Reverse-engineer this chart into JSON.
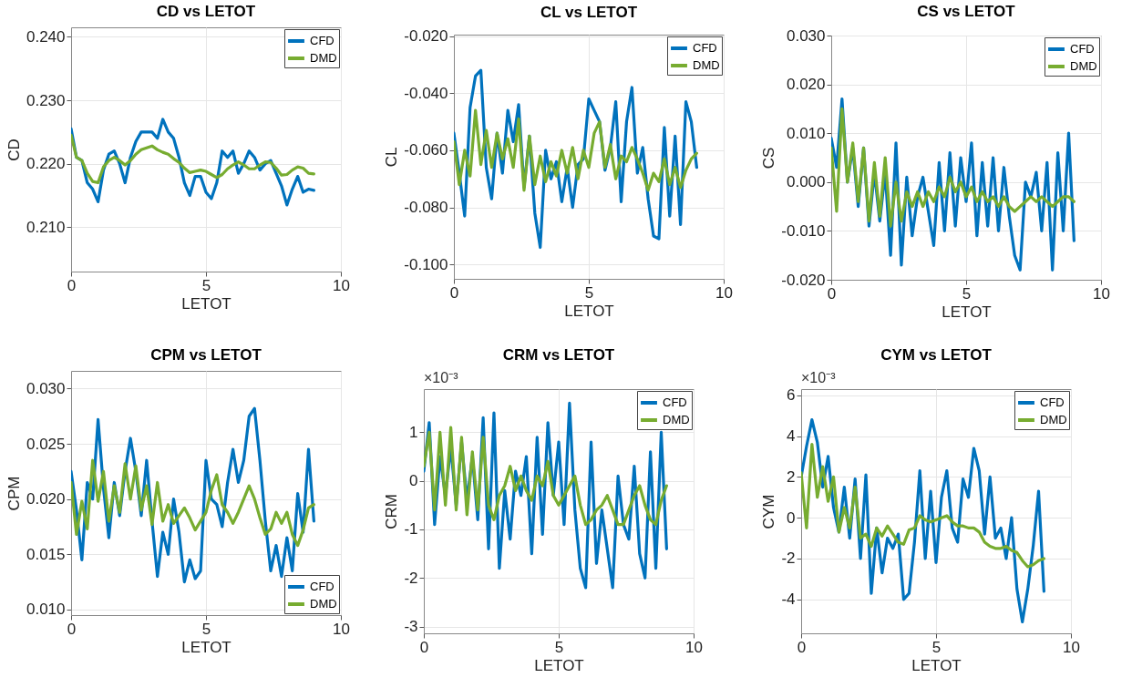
{
  "chart_data": [
    {
      "type": "line",
      "title": "CD vs LETOT",
      "xlabel": "LETOT",
      "ylabel": "CD",
      "x": [
        0,
        0.2,
        0.4,
        0.6,
        0.8,
        1.0,
        1.2,
        1.4,
        1.6,
        1.8,
        2.0,
        2.2,
        2.4,
        2.6,
        2.8,
        3.0,
        3.2,
        3.4,
        3.6,
        3.8,
        4.0,
        4.2,
        4.4,
        4.6,
        4.8,
        5.0,
        5.2,
        5.4,
        5.6,
        5.8,
        6.0,
        6.2,
        6.4,
        6.6,
        6.8,
        7.0,
        7.2,
        7.4,
        7.6,
        7.8,
        8.0,
        8.2,
        8.4,
        8.6,
        8.8,
        9.0
      ],
      "xlim": [
        0,
        10
      ],
      "xticks": [
        0,
        5,
        10
      ],
      "ylim": [
        0.203,
        0.2415
      ],
      "yticks": [
        {
          "value": 0.21,
          "label": "0.210"
        },
        {
          "value": 0.22,
          "label": "0.220"
        },
        {
          "value": 0.23,
          "label": "0.230"
        },
        {
          "value": 0.24,
          "label": "0.240"
        }
      ],
      "grid": true,
      "legend": "top right",
      "series": [
        {
          "name": "CFD",
          "color": "#0072bd",
          "values": [
            0.2255,
            0.221,
            0.2205,
            0.217,
            0.216,
            0.214,
            0.219,
            0.2215,
            0.222,
            0.22,
            0.217,
            0.221,
            0.2235,
            0.225,
            0.225,
            0.225,
            0.224,
            0.227,
            0.225,
            0.224,
            0.221,
            0.217,
            0.215,
            0.218,
            0.218,
            0.2155,
            0.2145,
            0.217,
            0.222,
            0.221,
            0.222,
            0.2185,
            0.22,
            0.222,
            0.221,
            0.219,
            0.22,
            0.2205,
            0.2185,
            0.2165,
            0.2135,
            0.216,
            0.218,
            0.2155,
            0.216,
            0.2158
          ]
        },
        {
          "name": "DMD",
          "color": "#77ac30",
          "values": [
            0.2245,
            0.221,
            0.2205,
            0.2185,
            0.2172,
            0.217,
            0.2195,
            0.2205,
            0.221,
            0.2205,
            0.2198,
            0.2205,
            0.2215,
            0.2222,
            0.2225,
            0.2228,
            0.2222,
            0.2218,
            0.2215,
            0.2208,
            0.2202,
            0.2193,
            0.2186,
            0.2188,
            0.219,
            0.2188,
            0.2183,
            0.2178,
            0.2183,
            0.2192,
            0.2198,
            0.2203,
            0.2198,
            0.2192,
            0.2192,
            0.2198,
            0.2203,
            0.2202,
            0.2193,
            0.2182,
            0.2183,
            0.219,
            0.2195,
            0.2193,
            0.2185,
            0.2184
          ]
        }
      ]
    },
    {
      "type": "line",
      "title": "CL vs LETOT",
      "xlabel": "LETOT",
      "ylabel": "CL",
      "x": [
        0,
        0.2,
        0.4,
        0.6,
        0.8,
        1.0,
        1.2,
        1.4,
        1.6,
        1.8,
        2.0,
        2.2,
        2.4,
        2.6,
        2.8,
        3.0,
        3.2,
        3.4,
        3.6,
        3.8,
        4.0,
        4.2,
        4.4,
        4.6,
        4.8,
        5.0,
        5.2,
        5.4,
        5.6,
        5.8,
        6.0,
        6.2,
        6.4,
        6.6,
        6.8,
        7.0,
        7.2,
        7.4,
        7.6,
        7.8,
        8.0,
        8.2,
        8.4,
        8.6,
        8.8,
        9.0
      ],
      "xlim": [
        0,
        10
      ],
      "xticks": [
        0,
        5,
        10
      ],
      "ylim": [
        -0.105,
        -0.0195
      ],
      "yticks": [
        {
          "value": -0.1,
          "label": "-0.100"
        },
        {
          "value": -0.08,
          "label": "-0.080"
        },
        {
          "value": -0.06,
          "label": "-0.060"
        },
        {
          "value": -0.04,
          "label": "-0.040"
        },
        {
          "value": -0.02,
          "label": "-0.020"
        }
      ],
      "grid": true,
      "legend": "top right",
      "series": [
        {
          "name": "CFD",
          "color": "#0072bd",
          "values": [
            -0.054,
            -0.068,
            -0.083,
            -0.045,
            -0.034,
            -0.032,
            -0.066,
            -0.077,
            -0.054,
            -0.068,
            -0.046,
            -0.057,
            -0.044,
            -0.073,
            -0.055,
            -0.082,
            -0.094,
            -0.06,
            -0.07,
            -0.064,
            -0.078,
            -0.066,
            -0.08,
            -0.065,
            -0.063,
            -0.042,
            -0.046,
            -0.05,
            -0.067,
            -0.059,
            -0.043,
            -0.078,
            -0.05,
            -0.038,
            -0.068,
            -0.059,
            -0.077,
            -0.09,
            -0.091,
            -0.052,
            -0.083,
            -0.055,
            -0.086,
            -0.043,
            -0.05,
            -0.066
          ]
        },
        {
          "name": "DMD",
          "color": "#77ac30",
          "values": [
            -0.057,
            -0.072,
            -0.06,
            -0.069,
            -0.046,
            -0.065,
            -0.053,
            -0.066,
            -0.054,
            -0.063,
            -0.056,
            -0.066,
            -0.049,
            -0.074,
            -0.055,
            -0.072,
            -0.062,
            -0.071,
            -0.064,
            -0.069,
            -0.06,
            -0.068,
            -0.059,
            -0.07,
            -0.06,
            -0.066,
            -0.054,
            -0.05,
            -0.066,
            -0.058,
            -0.07,
            -0.062,
            -0.064,
            -0.059,
            -0.063,
            -0.068,
            -0.074,
            -0.068,
            -0.071,
            -0.063,
            -0.072,
            -0.066,
            -0.073,
            -0.067,
            -0.063,
            -0.061
          ]
        }
      ]
    },
    {
      "type": "line",
      "title": "CS vs LETOT",
      "xlabel": "LETOT",
      "ylabel": "CS",
      "x": [
        0,
        0.2,
        0.4,
        0.6,
        0.8,
        1.0,
        1.2,
        1.4,
        1.6,
        1.8,
        2.0,
        2.2,
        2.4,
        2.6,
        2.8,
        3.0,
        3.2,
        3.4,
        3.6,
        3.8,
        4.0,
        4.2,
        4.4,
        4.6,
        4.8,
        5.0,
        5.2,
        5.4,
        5.6,
        5.8,
        6.0,
        6.2,
        6.4,
        6.6,
        6.8,
        7.0,
        7.2,
        7.4,
        7.6,
        7.8,
        8.0,
        8.2,
        8.4,
        8.6,
        8.8,
        9.0
      ],
      "xlim": [
        0,
        10
      ],
      "xticks": [
        0,
        5,
        10
      ],
      "ylim": [
        -0.02,
        0.03
      ],
      "yticks": [
        {
          "value": -0.02,
          "label": "-0.020"
        },
        {
          "value": -0.01,
          "label": "-0.010"
        },
        {
          "value": 0,
          "label": "0.000"
        },
        {
          "value": 0.01,
          "label": "0.010"
        },
        {
          "value": 0.02,
          "label": "0.020"
        },
        {
          "value": 0.03,
          "label": "0.030"
        }
      ],
      "grid": true,
      "legend": "top right",
      "series": [
        {
          "name": "CFD",
          "color": "#0072bd",
          "values": [
            0.009,
            0.003,
            0.017,
            0.0,
            0.007,
            -0.005,
            0.007,
            -0.009,
            0.002,
            -0.008,
            0.002,
            -0.015,
            0.008,
            -0.017,
            0.001,
            -0.011,
            -0.003,
            0.001,
            -0.006,
            -0.013,
            0.004,
            -0.01,
            0.006,
            -0.009,
            0.005,
            -0.004,
            0.008,
            -0.011,
            0.004,
            -0.009,
            0.005,
            -0.01,
            0.003,
            -0.007,
            -0.015,
            -0.018,
            0.0,
            -0.003,
            0.002,
            -0.01,
            0.004,
            -0.018,
            0.006,
            -0.01,
            0.01,
            -0.012
          ]
        },
        {
          "name": "DMD",
          "color": "#77ac30",
          "values": [
            0.007,
            -0.006,
            0.015,
            0.0,
            0.008,
            -0.004,
            0.007,
            -0.008,
            0.004,
            -0.007,
            0.005,
            -0.009,
            0.0,
            -0.008,
            -0.002,
            -0.005,
            -0.002,
            -0.005,
            -0.002,
            -0.004,
            -0.001,
            -0.003,
            0.001,
            -0.002,
            0.0,
            -0.003,
            -0.001,
            -0.004,
            -0.002,
            -0.004,
            -0.003,
            -0.005,
            -0.003,
            -0.005,
            -0.006,
            -0.005,
            -0.004,
            -0.003,
            -0.004,
            -0.003,
            -0.004,
            -0.005,
            -0.004,
            -0.003,
            -0.003,
            -0.004
          ]
        }
      ]
    },
    {
      "type": "line",
      "title": "CPM vs LETOT",
      "xlabel": "LETOT",
      "ylabel": "CPM",
      "x": [
        0,
        0.2,
        0.4,
        0.6,
        0.8,
        1.0,
        1.2,
        1.4,
        1.6,
        1.8,
        2.0,
        2.2,
        2.4,
        2.6,
        2.8,
        3.0,
        3.2,
        3.4,
        3.6,
        3.8,
        4.0,
        4.2,
        4.4,
        4.6,
        4.8,
        5.0,
        5.2,
        5.4,
        5.6,
        5.8,
        6.0,
        6.2,
        6.4,
        6.6,
        6.8,
        7.0,
        7.2,
        7.4,
        7.6,
        7.8,
        8.0,
        8.2,
        8.4,
        8.6,
        8.8,
        9.0
      ],
      "xlim": [
        0,
        10
      ],
      "xticks": [
        0,
        5,
        10
      ],
      "ylim": [
        0.0095,
        0.0316
      ],
      "yticks": [
        {
          "value": 0.01,
          "label": "0.010"
        },
        {
          "value": 0.015,
          "label": "0.015"
        },
        {
          "value": 0.02,
          "label": "0.020"
        },
        {
          "value": 0.025,
          "label": "0.025"
        },
        {
          "value": 0.03,
          "label": "0.030"
        }
      ],
      "grid": true,
      "legend": "bottom right",
      "series": [
        {
          "name": "CFD",
          "color": "#0072bd",
          "values": [
            0.0225,
            0.019,
            0.0145,
            0.0215,
            0.02,
            0.0272,
            0.021,
            0.0165,
            0.0215,
            0.0185,
            0.0225,
            0.0255,
            0.0225,
            0.0185,
            0.0235,
            0.018,
            0.013,
            0.017,
            0.015,
            0.02,
            0.017,
            0.0125,
            0.0145,
            0.0128,
            0.0135,
            0.0235,
            0.02,
            0.0195,
            0.0175,
            0.0215,
            0.0245,
            0.0215,
            0.0235,
            0.0275,
            0.0282,
            0.0235,
            0.018,
            0.0135,
            0.0158,
            0.013,
            0.0165,
            0.0135,
            0.0205,
            0.017,
            0.0245,
            0.018
          ]
        },
        {
          "name": "DMD",
          "color": "#77ac30",
          "values": [
            0.0215,
            0.0168,
            0.0198,
            0.0173,
            0.0235,
            0.0198,
            0.0225,
            0.018,
            0.0212,
            0.0188,
            0.0232,
            0.02,
            0.023,
            0.019,
            0.0212,
            0.0177,
            0.0215,
            0.018,
            0.0195,
            0.0178,
            0.0185,
            0.0192,
            0.0183,
            0.0172,
            0.018,
            0.0188,
            0.0208,
            0.0222,
            0.0195,
            0.0188,
            0.0178,
            0.0188,
            0.02,
            0.0212,
            0.02,
            0.0183,
            0.0168,
            0.0173,
            0.0188,
            0.0178,
            0.0188,
            0.0168,
            0.0158,
            0.0172,
            0.0192,
            0.0195
          ]
        }
      ]
    },
    {
      "type": "line",
      "title": "CRM vs LETOT",
      "xlabel": "LETOT",
      "ylabel": "CRM",
      "annotations": [
        "×10⁻³"
      ],
      "x": [
        0,
        0.2,
        0.4,
        0.6,
        0.8,
        1.0,
        1.2,
        1.4,
        1.6,
        1.8,
        2.0,
        2.2,
        2.4,
        2.6,
        2.8,
        3.0,
        3.2,
        3.4,
        3.6,
        3.8,
        4.0,
        4.2,
        4.4,
        4.6,
        4.8,
        5.0,
        5.2,
        5.4,
        5.6,
        5.8,
        6.0,
        6.2,
        6.4,
        6.6,
        6.8,
        7.0,
        7.2,
        7.4,
        7.6,
        7.8,
        8.0,
        8.2,
        8.4,
        8.6,
        8.8,
        9.0
      ],
      "xlim": [
        0,
        10
      ],
      "xticks": [
        0,
        5,
        10
      ],
      "ylim": [
        -3.14,
        1.89
      ],
      "yticks": [
        -3,
        -2,
        -1,
        0,
        1
      ],
      "grid": true,
      "legend": "top right",
      "series": [
        {
          "name": "CFD",
          "color": "#0072bd",
          "values": [
            0.2,
            1.2,
            -0.9,
            0.5,
            -0.3,
            0.7,
            -0.5,
            0.8,
            -0.4,
            0.5,
            -0.8,
            1.3,
            -1.4,
            1.4,
            -1.8,
            -0.2,
            -1.2,
            0.2,
            -0.3,
            0.5,
            -1.5,
            0.9,
            -1.1,
            1.2,
            -0.3,
            0.8,
            -0.9,
            1.6,
            -0.6,
            -1.8,
            -2.2,
            0.8,
            -1.7,
            -0.6,
            -1.4,
            -2.2,
            0.1,
            -0.9,
            -1.2,
            0.3,
            -1.5,
            -2.0,
            0.6,
            -1.8,
            1.0,
            -1.4
          ]
        },
        {
          "name": "DMD",
          "color": "#77ac30",
          "values": [
            0.3,
            1.0,
            -0.6,
            1.0,
            -0.5,
            1.1,
            -0.6,
            0.9,
            -0.7,
            0.6,
            -0.6,
            0.9,
            -0.5,
            -0.8,
            -0.3,
            -0.1,
            0.3,
            -0.2,
            0.1,
            -0.2,
            -0.4,
            0.1,
            -0.1,
            0.4,
            -0.3,
            -0.5,
            -0.3,
            -0.1,
            0.1,
            -0.5,
            -0.9,
            -0.8,
            -0.6,
            -0.5,
            -0.3,
            -0.6,
            -0.9,
            -0.9,
            -0.6,
            -0.3,
            -0.1,
            -0.5,
            -0.8,
            -0.9,
            -0.4,
            -0.1
          ]
        }
      ]
    },
    {
      "type": "line",
      "title": "CYM vs LETOT",
      "xlabel": "LETOT",
      "ylabel": "CYM",
      "annotations": [
        "×10⁻³"
      ],
      "x": [
        0,
        0.2,
        0.4,
        0.6,
        0.8,
        1.0,
        1.2,
        1.4,
        1.6,
        1.8,
        2.0,
        2.2,
        2.4,
        2.6,
        2.8,
        3.0,
        3.2,
        3.4,
        3.6,
        3.8,
        4.0,
        4.2,
        4.4,
        4.6,
        4.8,
        5.0,
        5.2,
        5.4,
        5.6,
        5.8,
        6.0,
        6.2,
        6.4,
        6.6,
        6.8,
        7.0,
        7.2,
        7.4,
        7.6,
        7.8,
        8.0,
        8.2,
        8.4,
        8.6,
        8.8,
        9.0
      ],
      "xlim": [
        0,
        10
      ],
      "xticks": [
        0,
        5,
        10
      ],
      "ylim": [
        -5.66,
        6.3
      ],
      "yticks": [
        -4,
        -2,
        0,
        2,
        4,
        6
      ],
      "grid": true,
      "legend": "top right",
      "series": [
        {
          "name": "CFD",
          "color": "#0072bd",
          "values": [
            2.0,
            3.5,
            4.8,
            3.7,
            1.5,
            3.0,
            0.5,
            -0.7,
            1.5,
            -1.0,
            1.9,
            -2.0,
            2.1,
            -3.7,
            -0.5,
            -2.7,
            -1.0,
            -1.5,
            -0.8,
            -4.0,
            -3.7,
            -1.2,
            2.3,
            -2.0,
            1.3,
            -2.2,
            1.0,
            2.3,
            -0.5,
            -1.2,
            1.9,
            1.0,
            3.4,
            2.3,
            -0.8,
            2.0,
            -1.0,
            -0.5,
            -2.0,
            0.0,
            -3.5,
            -5.1,
            -3.5,
            -1.4,
            1.3,
            -3.6
          ]
        },
        {
          "name": "DMD",
          "color": "#77ac30",
          "values": [
            2.2,
            -0.5,
            3.6,
            1.0,
            2.5,
            0.8,
            2.0,
            -0.7,
            0.5,
            -0.5,
            1.5,
            -1.0,
            -0.8,
            -1.4,
            -0.5,
            -0.9,
            -0.4,
            -0.8,
            -1.2,
            -1.3,
            -0.6,
            -0.5,
            0.1,
            -0.1,
            -0.2,
            -0.1,
            0.0,
            0.1,
            -0.2,
            -0.4,
            -0.4,
            -0.5,
            -0.5,
            -0.7,
            -1.2,
            -1.4,
            -1.5,
            -1.5,
            -1.4,
            -1.6,
            -1.7,
            -2.1,
            -2.4,
            -2.3,
            -2.1,
            -2.0
          ]
        }
      ]
    }
  ]
}
